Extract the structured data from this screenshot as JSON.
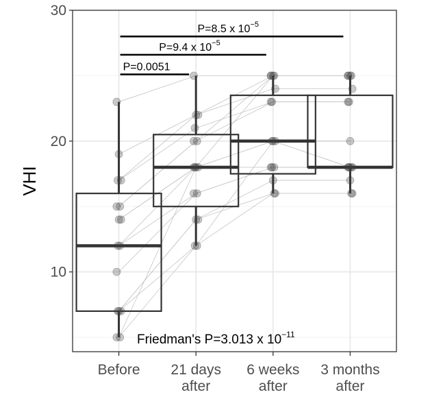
{
  "chart_data": {
    "type": "box",
    "title": "",
    "xlabel": "",
    "ylabel": "VHI",
    "ylim": [
      3.9,
      30
    ],
    "yticks": [
      10,
      20,
      30
    ],
    "grid": true,
    "categories": [
      {
        "line1": "Before",
        "line2": ""
      },
      {
        "line1": "21 days",
        "line2": "after"
      },
      {
        "line1": "6 weeks",
        "line2": "after"
      },
      {
        "line1": "3 months",
        "line2": "after"
      }
    ],
    "boxes": [
      {
        "whisker_low": 5,
        "q1": 7,
        "median": 12,
        "q3": 16,
        "whisker_high": 23
      },
      {
        "whisker_low": 12,
        "q1": 15,
        "median": 18,
        "q3": 20.5,
        "whisker_high": 25
      },
      {
        "whisker_low": 16,
        "q1": 17.5,
        "median": 20,
        "q3": 23.5,
        "whisker_high": 25
      },
      {
        "whisker_low": 16,
        "q1": 18,
        "median": 18,
        "q3": 23.5,
        "whisker_high": 25
      }
    ],
    "subjects": [
      [
        23,
        25,
        25,
        25
      ],
      [
        19,
        22,
        25,
        25
      ],
      [
        17,
        22,
        24,
        24
      ],
      [
        17,
        21,
        23,
        23
      ],
      [
        15,
        20,
        25,
        25
      ],
      [
        15,
        20,
        23,
        23
      ],
      [
        14,
        18,
        20,
        20
      ],
      [
        14,
        18,
        20,
        18
      ],
      [
        12,
        18,
        18,
        18
      ],
      [
        12,
        16,
        18,
        18
      ],
      [
        10,
        16,
        18,
        18
      ],
      [
        7,
        14,
        17,
        17
      ],
      [
        7,
        14,
        16,
        16
      ],
      [
        7,
        12,
        20,
        18
      ],
      [
        5,
        12,
        16,
        16
      ],
      [
        5,
        18,
        25,
        25
      ]
    ],
    "comparisons": [
      {
        "from": 0,
        "to": 1,
        "y": 25.1,
        "label": "P=0.0051",
        "exp": ""
      },
      {
        "from": 0,
        "to": 2,
        "y": 26.6,
        "label": "P=9.4 x 10",
        "exp": "−5"
      },
      {
        "from": 0,
        "to": 3,
        "y": 28.0,
        "label": "P=8.5 x 10",
        "exp": "−5"
      }
    ],
    "annotation": {
      "label": "Friedman's  P=3.013 x 10",
      "exp": "−11"
    }
  }
}
